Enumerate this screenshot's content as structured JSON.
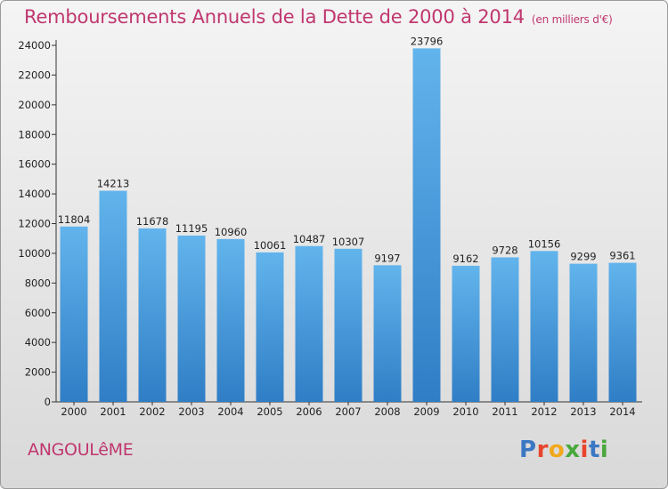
{
  "title": "Remboursements Annuels de la Dette de 2000 à 2014",
  "subtitle": "(en milliers d'€)",
  "city": "ANGOULêME",
  "logo": {
    "text": "Proxiti",
    "letter_colors": [
      "#3b78c4",
      "#e8452c",
      "#f2a81d",
      "#49a83c",
      "#e8452c",
      "#3b78c4",
      "#49a83c"
    ]
  },
  "colors": {
    "bar_top": "#62b4ec",
    "bar_bottom": "#2f7ec6",
    "title": "#c0376f"
  },
  "chart_data": {
    "type": "bar",
    "title": "Remboursements Annuels de la Dette de 2000 à 2014",
    "subtitle": "(en milliers d'€)",
    "categories": [
      "2000",
      "2001",
      "2002",
      "2003",
      "2004",
      "2005",
      "2006",
      "2007",
      "2008",
      "2009",
      "2010",
      "2011",
      "2012",
      "2013",
      "2014"
    ],
    "values": [
      11804,
      14213,
      11678,
      11195,
      10960,
      10061,
      10487,
      10307,
      9197,
      23796,
      9162,
      9728,
      10156,
      9299,
      9361
    ],
    "ylim": [
      0,
      24000
    ],
    "yticks": [
      0,
      2000,
      4000,
      6000,
      8000,
      10000,
      12000,
      14000,
      16000,
      18000,
      20000,
      22000,
      24000
    ],
    "grid": false,
    "legend": "none"
  }
}
